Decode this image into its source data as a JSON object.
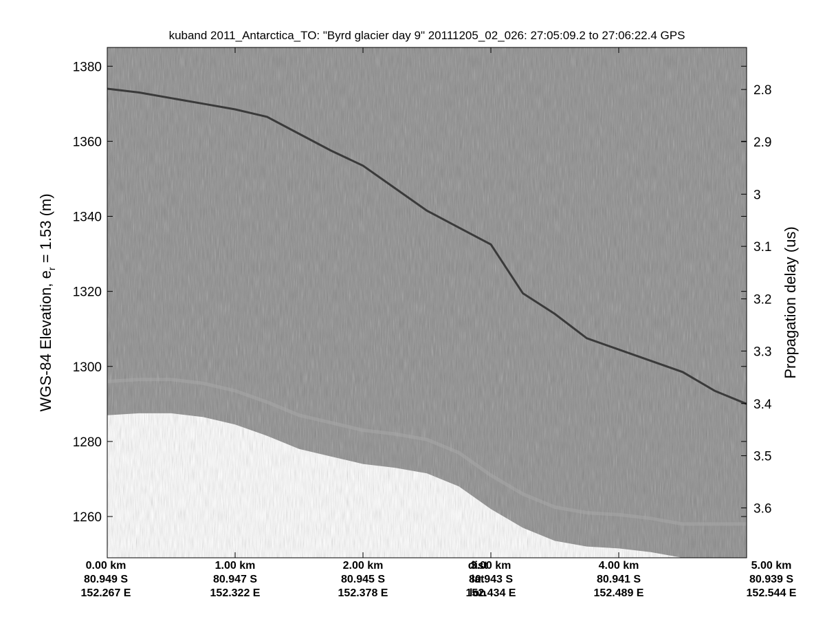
{
  "chart_data": {
    "type": "heatmap",
    "title": "kuband 2011_Antarctica_TO: \"Byrd glacier day 9\"  20111205_02_026: 27:05:09.2 to 27:06:22.4 GPS",
    "ylabel_left_main": "WGS-84 Elevation, e",
    "ylabel_left_sub": "r",
    "ylabel_left_tail": " = 1.53 (m)",
    "ylabel_right": "Propagation delay (us)",
    "ylim_left": [
      1249,
      1385
    ],
    "yticks_left": [
      1260,
      1280,
      1300,
      1320,
      1340,
      1360,
      1380
    ],
    "yticks_right": [
      {
        "label": "2.8",
        "elev": 1373.8
      },
      {
        "label": "2.9",
        "elev": 1359.9
      },
      {
        "label": "3",
        "elev": 1345.9
      },
      {
        "label": "3.1",
        "elev": 1332.0
      },
      {
        "label": "3.2",
        "elev": 1318.0
      },
      {
        "label": "3.3",
        "elev": 1304.1
      },
      {
        "label": "3.4",
        "elev": 1290.1
      },
      {
        "label": "3.5",
        "elev": 1276.2
      },
      {
        "label": "3.6",
        "elev": 1262.3
      }
    ],
    "xlim_km": [
      0,
      5
    ],
    "x_ticks": [
      {
        "km": 0,
        "dist": "0.00 km",
        "lat": "80.949 S",
        "lon": "152.267 E"
      },
      {
        "km": 1,
        "dist": "1.00 km",
        "lat": "80.947 S",
        "lon": "152.322 E"
      },
      {
        "km": 2,
        "dist": "2.00 km",
        "lat": "80.945 S",
        "lon": "152.378 E"
      },
      {
        "km": 3,
        "dist": "3.00 km",
        "lat": "80.943 S",
        "lon": "152.434 E"
      },
      {
        "km": 4,
        "dist": "4.00 km",
        "lat": "80.941 S",
        "lon": "152.489 E"
      },
      {
        "km": 5,
        "dist": "5.00 km",
        "lat": "80.939 S",
        "lon": "152.544 E"
      }
    ],
    "row_legend": {
      "km": 2.5,
      "dist": "dist",
      "lat": "lat",
      "lon": "lon"
    },
    "surface_km": [
      0,
      0.25,
      0.5,
      0.75,
      1.0,
      1.25,
      1.5,
      1.75,
      2.0,
      2.25,
      2.5,
      2.75,
      3.0,
      3.25,
      3.5,
      3.75,
      4.0,
      4.25,
      4.5,
      4.75,
      5.0
    ],
    "surface_elev": [
      1374,
      1373,
      1371.5,
      1370,
      1368.5,
      1366.5,
      1362,
      1357.5,
      1353.5,
      1347.5,
      1341.5,
      1337,
      1332.5,
      1319.5,
      1314,
      1307.5,
      1304.5,
      1301.5,
      1298.5,
      1293.5,
      1290
    ],
    "data_bottom_km": [
      0,
      0.25,
      0.5,
      0.75,
      1.0,
      1.25,
      1.5,
      1.75,
      2.0,
      2.25,
      2.5,
      2.75,
      3.0,
      3.25,
      3.5,
      3.75,
      4.0,
      4.25,
      4.5,
      4.75,
      5.0
    ],
    "data_bottom_elev": [
      1287,
      1287.5,
      1287.5,
      1286.5,
      1284.5,
      1281.5,
      1278,
      1276,
      1274,
      1273,
      1271.5,
      1268,
      1262,
      1257,
      1253.5,
      1252,
      1251.5,
      1250.5,
      1249,
      1249,
      1249
    ],
    "colormap": "grayscale",
    "colors": {
      "background": "#8a8a8a",
      "surface_echo": "#3a3a3a",
      "internal_layer": "#a8a8a8"
    }
  }
}
